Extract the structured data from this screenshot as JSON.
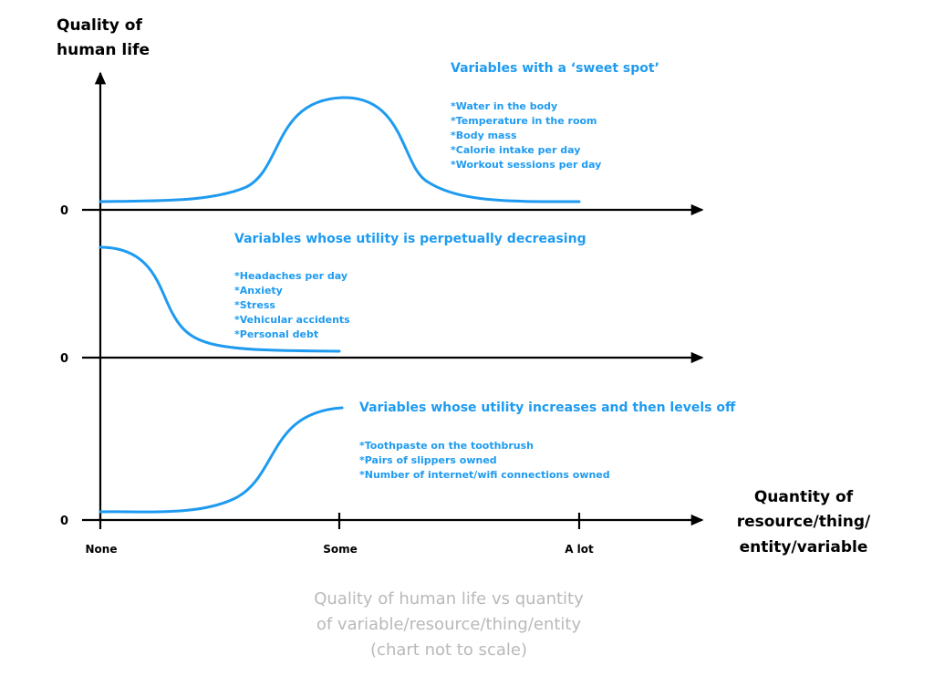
{
  "y_axis_title": [
    "Quality of",
    "human life"
  ],
  "x_axis_title": [
    "Quantity of",
    "resource/thing/",
    "entity/variable"
  ],
  "zero_labels": [
    "0",
    "0",
    "0"
  ],
  "x_ticks": [
    "None",
    "Some",
    "A lot"
  ],
  "groups": [
    {
      "title": "Variables with a ‘sweet spot’",
      "items": [
        "*Water in the body",
        "*Temperature in the room",
        "*Body mass",
        "*Calorie intake per day",
        "*Workout sessions per day"
      ]
    },
    {
      "title": "Variables whose utility is perpetually decreasing",
      "items": [
        "*Headaches per day",
        "*Anxiety",
        "*Stress",
        "*Vehicular accidents",
        "*Personal debt"
      ]
    },
    {
      "title": "Variables whose utility increases and then levels off",
      "items": [
        "*Toothpaste on the toothbrush",
        "*Pairs of slippers owned",
        "*Number of internet/wifi connections owned"
      ]
    }
  ],
  "caption": [
    "Quality of human life vs quantity",
    "of variable/resource/thing/entity",
    "(chart not to scale)"
  ],
  "colors": {
    "curve": "#1e9bf0",
    "axis": "#000000",
    "caption": "#b9b9b9"
  }
}
